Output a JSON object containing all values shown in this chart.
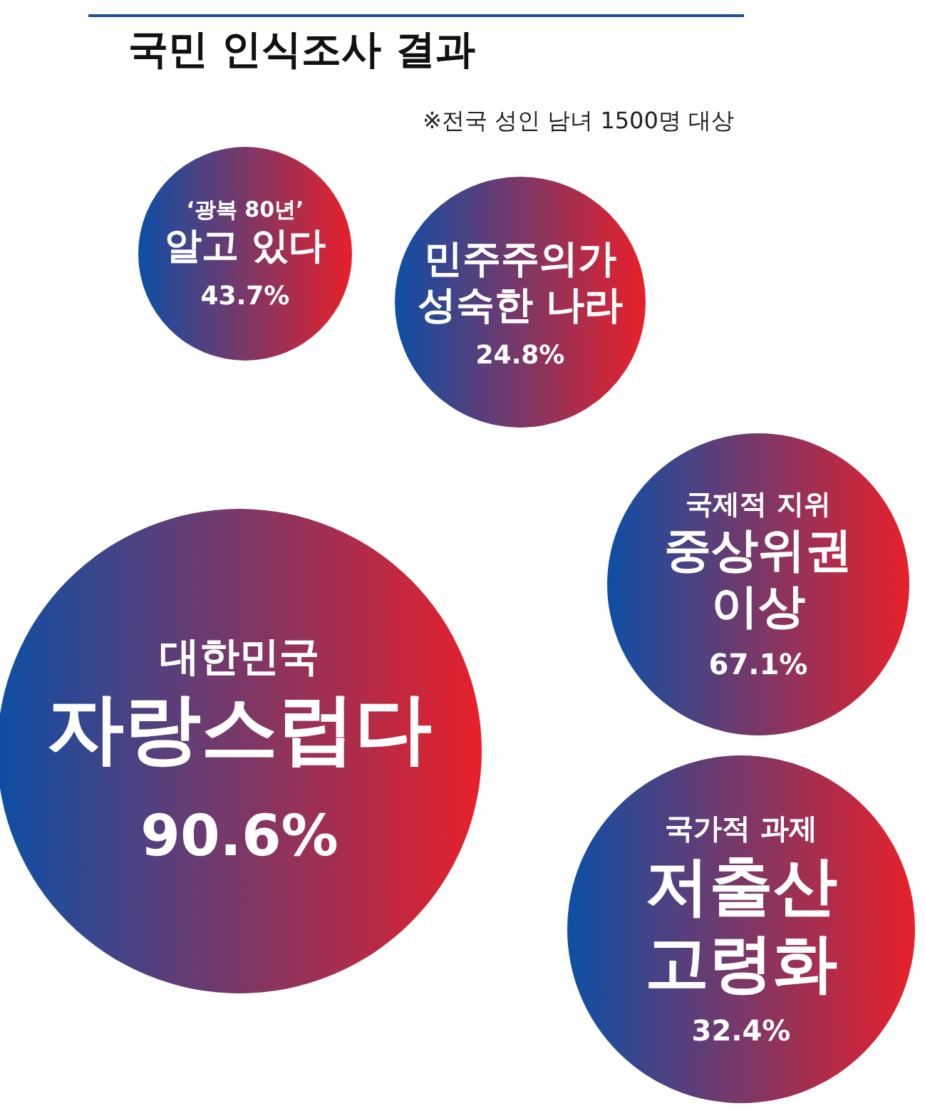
{
  "chart_data": {
    "type": "other",
    "title": "국민 인식조사 결과",
    "subtitle": "※전국 성인 남녀 1500명 대상",
    "categories": [
      "‘광복 80년’\n알고 있다",
      "민주주의가\n성숙한 나라",
      "대한민국\n자랑스럽다",
      "국제적 지위\n중상위권\n이상",
      "국가적 과제\n저출산\n고령화"
    ],
    "values": [
      43.7,
      24.8,
      90.6,
      67.1,
      32.4
    ],
    "value_labels": [
      "43.7%",
      "24.8%",
      "90.6%",
      "67.1%",
      "32.4%"
    ],
    "colors": [
      "#e8202a",
      "#e8202a",
      "#e8202a",
      "#e8202a",
      "#e8202a"
    ]
  }
}
